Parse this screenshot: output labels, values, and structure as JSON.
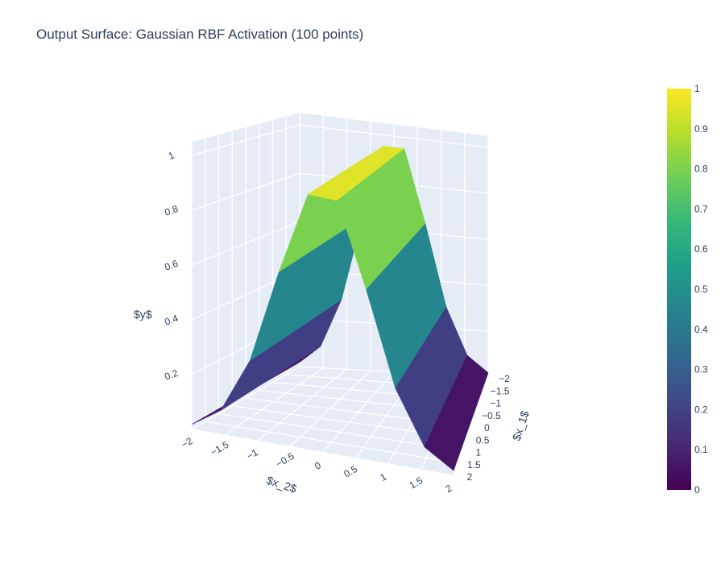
{
  "chart_data": {
    "type": "surface",
    "title": "Output Surface: Gaussian RBF Activation (100 points)",
    "xlabel": "$x_1$",
    "ylabel": "$x_2$",
    "zlabel": "$y$",
    "x_ticks": [
      "−2",
      "−1.5",
      "−1",
      "−0.5",
      "0",
      "0.5",
      "1",
      "1.5",
      "2"
    ],
    "y_ticks": [
      "−2",
      "−1.5",
      "−1",
      "−0.5",
      "0",
      "0.5",
      "1",
      "1.5",
      "2"
    ],
    "z_ticks": [
      "0.2",
      "0.4",
      "0.6",
      "0.8",
      "1"
    ],
    "colorbar_ticks": [
      "0",
      "0.1",
      "0.2",
      "0.3",
      "0.4",
      "0.5",
      "0.6",
      "0.7",
      "0.8",
      "0.9",
      "1"
    ],
    "colorscale": "Viridis",
    "colorscale_stops": [
      "#440154",
      "#482878",
      "#3e4989",
      "#31688e",
      "#26828e",
      "#1f9e89",
      "#35b779",
      "#6ece58",
      "#b5de2b",
      "#fde725"
    ],
    "xlim": [
      -2,
      2
    ],
    "ylim": [
      -2,
      2
    ],
    "zlim": [
      0,
      1
    ],
    "surface_function": "exp(-x2^2)",
    "grid": true,
    "scene_background": "#e5ecf6"
  }
}
